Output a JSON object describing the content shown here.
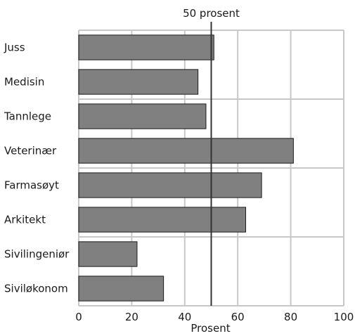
{
  "chart_data": {
    "type": "bar",
    "orientation": "horizontal",
    "categories": [
      "Juss",
      "Medisin",
      "Tannlege",
      "Veterinær",
      "Farmasøyt",
      "Arkitekt",
      "Sivilingeniør",
      "Siviløkonom"
    ],
    "values": [
      51,
      45,
      48,
      81,
      69,
      63,
      22,
      32
    ],
    "xlabel": "Prosent",
    "xlim": [
      0,
      100
    ],
    "xticks": [
      0,
      20,
      40,
      60,
      80,
      100
    ],
    "xtick_labels": [
      "0",
      "20",
      "40",
      "60",
      "80",
      "100"
    ],
    "grid": true,
    "reference_line": {
      "value": 50,
      "label": "50 prosent"
    },
    "colors": {
      "bar_fill": "#808080",
      "bar_stroke": "#1a1a1a",
      "grid": "#c8c8c8",
      "reference_line": "#333333"
    }
  }
}
